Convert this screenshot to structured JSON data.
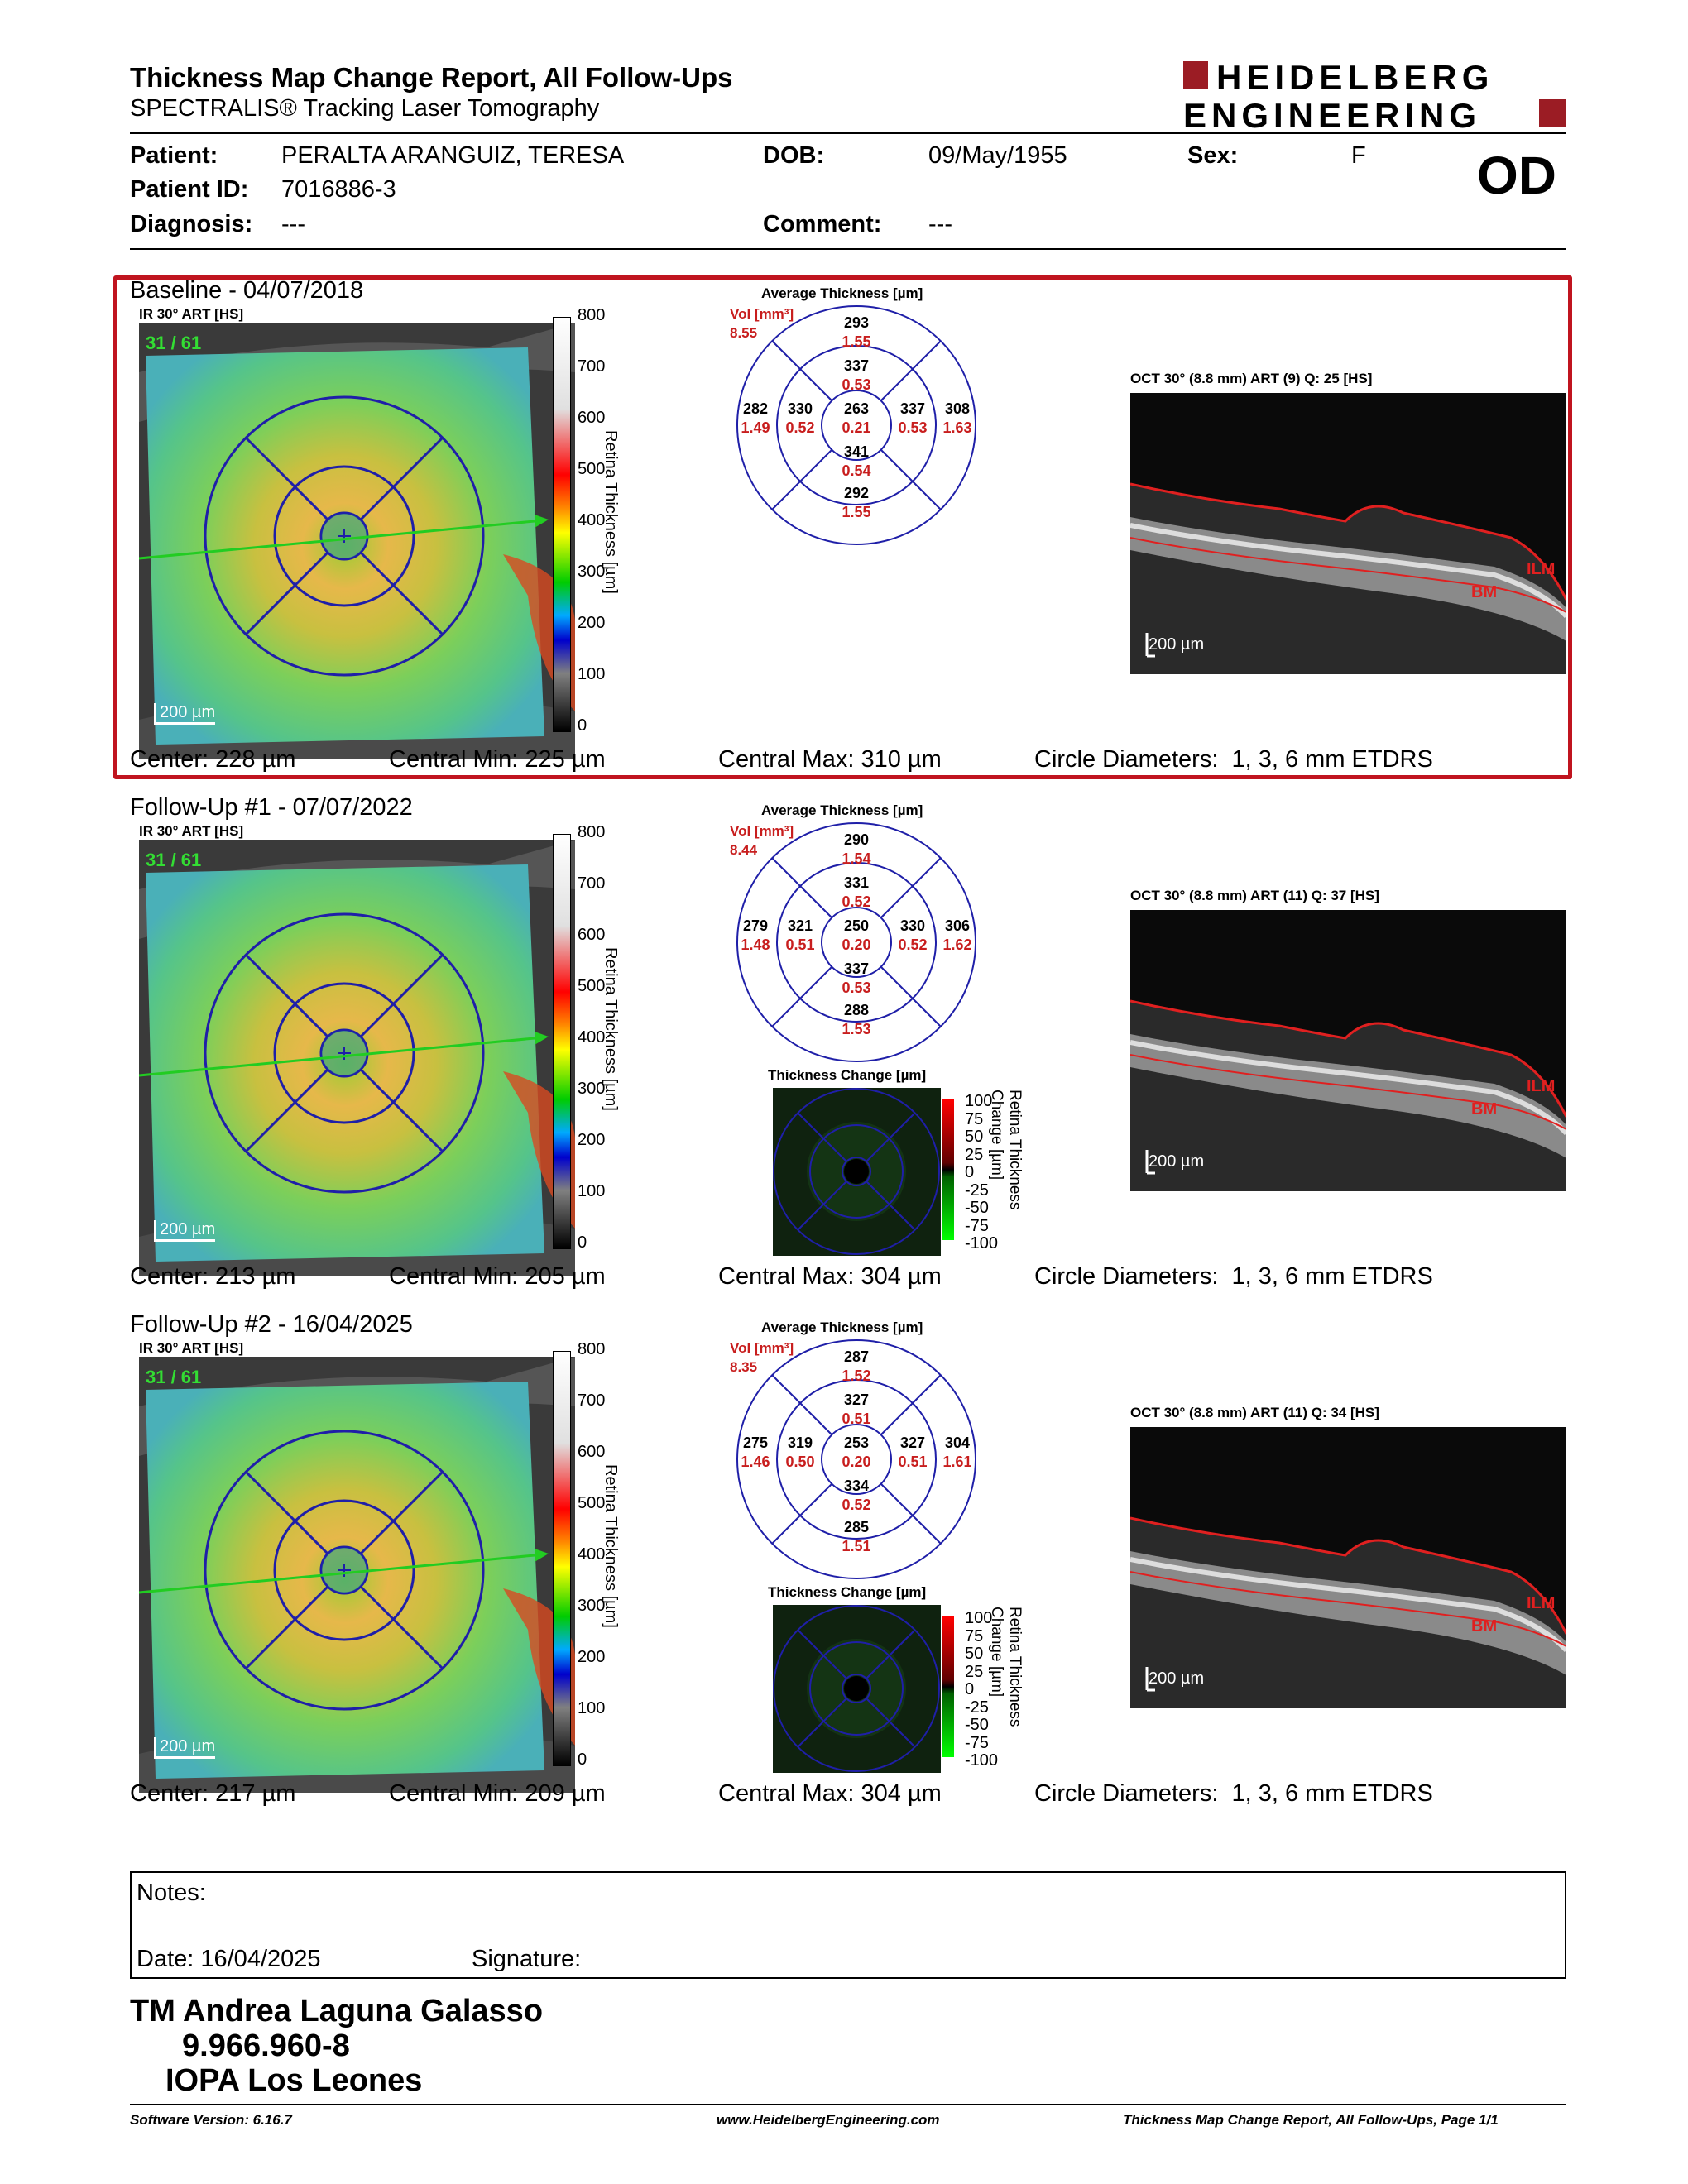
{
  "header": {
    "title": "Thickness Map Change Report, All Follow-Ups",
    "subtitle": "SPECTRALIS® Tracking Laser Tomography",
    "logo_line1": "HEIDELBERG",
    "logo_line2": "ENGINEERING",
    "brand_color": "#9b1c24"
  },
  "patient": {
    "patient_label": "Patient:",
    "patient_name": "PERALTA ARANGUIZ, TERESA",
    "dob_label": "DOB:",
    "dob": "09/May/1955",
    "sex_label": "Sex:",
    "sex": "F",
    "id_label": "Patient ID:",
    "id": "7016886-3",
    "diagnosis_label": "Diagnosis:",
    "diagnosis": "---",
    "comment_label": "Comment:",
    "comment": "---",
    "eye": "OD"
  },
  "common": {
    "ir_label": "IR 30° ART [HS]",
    "fixation": "31 / 61",
    "scalebar": "200 µm",
    "scale_ticks": [
      "800",
      "700",
      "600",
      "500",
      "400",
      "300",
      "200",
      "100",
      "0"
    ],
    "scale_axis_label": "Retina Thickness [µm]",
    "avg_thickness_label": "Average Thickness [µm]",
    "vol_label": "Vol [mm³]",
    "change_label": "Thickness Change [µm]",
    "change_ticks": [
      "100",
      "75",
      "50",
      "25",
      "0",
      "-25",
      "-50",
      "-75",
      "-100"
    ],
    "change_axis_label": "Retina Thickness Change [µm]",
    "oct_scalebar": "200 µm",
    "ilm": "ILM",
    "bm": "BM",
    "circle_diameters": "Circle Diameters:  1, 3, 6 mm ETDRS"
  },
  "exams": [
    {
      "title": "Baseline - 04/07/2018",
      "oct_label": "OCT 30° (8.8 mm) ART (9) Q: 25 [HS]",
      "vol_total": "8.55",
      "center": "Center: 228 µm",
      "central_min": "Central Min: 225 µm",
      "central_max": "Central Max: 310 µm",
      "grid": {
        "c_t": "263",
        "c_v": "0.21",
        "in_s_t": "337",
        "in_s_v": "0.53",
        "in_t_t": "330",
        "in_t_v": "0.52",
        "in_n_t": "337",
        "in_n_v": "0.53",
        "in_i_t": "341",
        "in_i_v": "0.54",
        "out_s_t": "293",
        "out_s_v": "1.55",
        "out_t_t": "282",
        "out_t_v": "1.49",
        "out_n_t": "308",
        "out_n_v": "1.63",
        "out_i_t": "292",
        "out_i_v": "1.55"
      }
    },
    {
      "title": "Follow-Up #1 - 07/07/2022",
      "oct_label": "OCT 30° (8.8 mm) ART (11) Q: 37 [HS]",
      "vol_total": "8.44",
      "center": "Center: 213 µm",
      "central_min": "Central Min: 205 µm",
      "central_max": "Central Max: 304 µm",
      "grid": {
        "c_t": "250",
        "c_v": "0.20",
        "in_s_t": "331",
        "in_s_v": "0.52",
        "in_t_t": "321",
        "in_t_v": "0.51",
        "in_n_t": "330",
        "in_n_v": "0.52",
        "in_i_t": "337",
        "in_i_v": "0.53",
        "out_s_t": "290",
        "out_s_v": "1.54",
        "out_t_t": "279",
        "out_t_v": "1.48",
        "out_n_t": "306",
        "out_n_v": "1.62",
        "out_i_t": "288",
        "out_i_v": "1.53"
      }
    },
    {
      "title": "Follow-Up #2 - 16/04/2025",
      "oct_label": "OCT 30° (8.8 mm) ART (11) Q: 34 [HS]",
      "vol_total": "8.35",
      "center": "Center: 217 µm",
      "central_min": "Central Min: 209 µm",
      "central_max": "Central Max: 304 µm",
      "grid": {
        "c_t": "253",
        "c_v": "0.20",
        "in_s_t": "327",
        "in_s_v": "0.51",
        "in_t_t": "319",
        "in_t_v": "0.50",
        "in_n_t": "327",
        "in_n_v": "0.51",
        "in_i_t": "334",
        "in_i_v": "0.52",
        "out_s_t": "287",
        "out_s_v": "1.52",
        "out_t_t": "275",
        "out_t_v": "1.46",
        "out_n_t": "304",
        "out_n_v": "1.61",
        "out_i_t": "285",
        "out_i_v": "1.51"
      }
    }
  ],
  "notes": {
    "notes_label": "Notes:",
    "date": "Date: 16/04/2025",
    "signature": "Signature:"
  },
  "signer": {
    "name": "TM Andrea Laguna Galasso",
    "id": "9.966.960-8",
    "org": "IOPA Los Leones"
  },
  "footer": {
    "software": "Software Version: 6.16.7",
    "url": "www.HeidelbergEngineering.com",
    "page": "Thickness Map Change Report, All Follow-Ups, Page 1/1"
  }
}
